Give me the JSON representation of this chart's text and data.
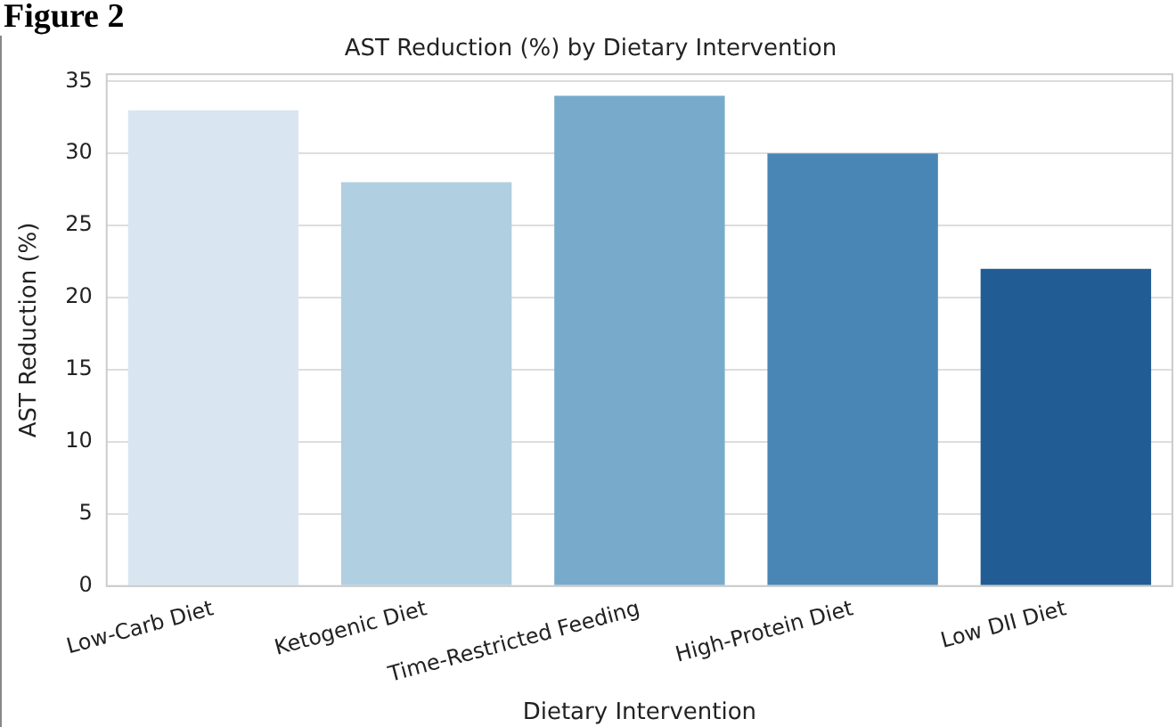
{
  "chart_data": {
    "type": "bar",
    "title": "AST Reduction (%) by Dietary Intervention",
    "xlabel": "Dietary Intervention",
    "ylabel": "AST Reduction (%)",
    "categories": [
      "Low-Carb Diet",
      "Ketogenic Diet",
      "Time-Restricted Feeding",
      "High-Protein Diet",
      "Low DII Diet"
    ],
    "values": [
      33,
      28,
      34,
      30,
      22
    ],
    "colors": [
      "#d9e6f2",
      "#b0cfe1",
      "#78abcb",
      "#4a86b5",
      "#225c94"
    ],
    "ylim": [
      0,
      35.5
    ],
    "yticks": [
      0,
      5,
      10,
      15,
      20,
      25,
      30,
      35
    ],
    "grid": "y",
    "annotations": [
      "Figure 2"
    ]
  }
}
